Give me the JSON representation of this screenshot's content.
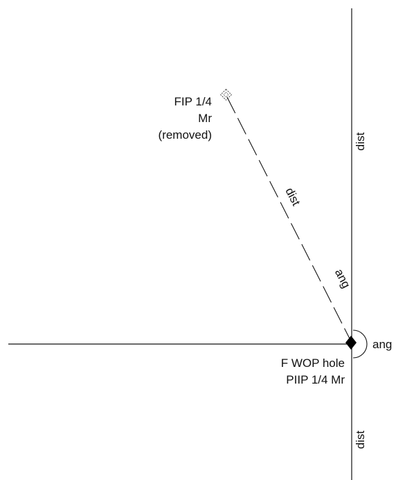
{
  "labels": {
    "removed_monument": {
      "line1": "FIP 1/4",
      "line2": "Mr",
      "line3": "(removed)"
    },
    "found_monument": {
      "line1": "F WOP hole",
      "line2": "PIIP 1/4 Mr"
    },
    "dashed_line_distance": "dist",
    "dashed_line_angle": "ang",
    "vertical_upper_distance": "dist",
    "vertical_lower_distance": "dist",
    "angle_arc_label": "ang"
  },
  "colors": {
    "line": "#111111",
    "background": "#ffffff"
  },
  "icons": {
    "removed_monument": "dashed-open-marker-icon",
    "found_monument": "filled-diamond-marker-icon"
  }
}
